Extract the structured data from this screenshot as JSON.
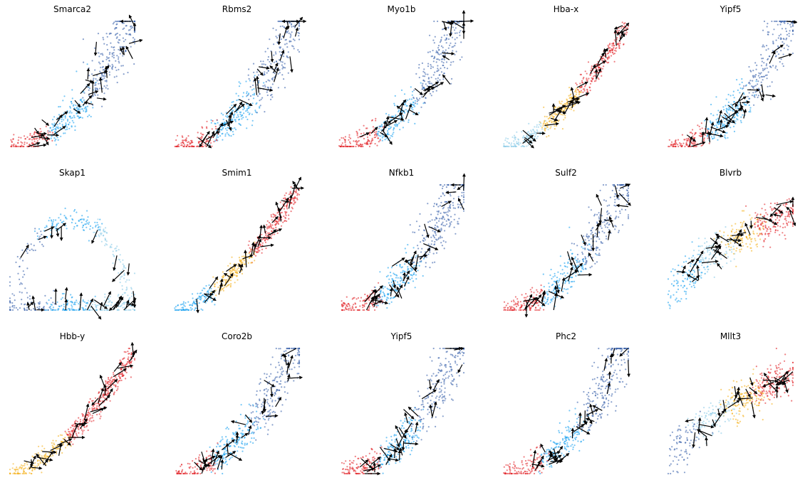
{
  "figure": {
    "panels": [
      {
        "title": "Smarca2"
      },
      {
        "title": "Rbms2"
      },
      {
        "title": "Myo1b"
      },
      {
        "title": "Hba-x"
      },
      {
        "title": "Yipf5"
      },
      {
        "title": "Skap1"
      },
      {
        "title": "Smim1"
      },
      {
        "title": "Nfkb1"
      },
      {
        "title": "Sulf2"
      },
      {
        "title": "Blvrb"
      },
      {
        "title": "Hbb-y"
      },
      {
        "title": "Coro2b"
      },
      {
        "title": "Yipf5"
      },
      {
        "title": "Phc2"
      },
      {
        "title": "Mllt3"
      }
    ]
  },
  "colors": {
    "dark_blue": "#3b63ab",
    "mid_blue": "#1aa1f0",
    "light_blue": "#8ccbe8",
    "orange": "#f5b21f",
    "red": "#e3262c",
    "arrow": "#000000"
  },
  "chart_data": {
    "type": "scatter",
    "subtype": "velocity-phase-portraits",
    "grid": "off",
    "axes": "off",
    "legend": "none",
    "layout_grid": [
      3,
      5
    ],
    "panels": [
      {
        "title": "Smarca2",
        "shape": "convex",
        "populations": [
          "red",
          "mid_blue",
          "dark_blue"
        ]
      },
      {
        "title": "Rbms2",
        "shape": "convex",
        "populations": [
          "red",
          "mid_blue",
          "dark_blue"
        ]
      },
      {
        "title": "Myo1b",
        "shape": "convex",
        "populations": [
          "red",
          "mid_blue",
          "dark_blue"
        ]
      },
      {
        "title": "Hba-x",
        "shape": "diagonal",
        "populations": [
          "light_blue",
          "orange",
          "red"
        ]
      },
      {
        "title": "Yipf5",
        "shape": "convex",
        "populations": [
          "red",
          "mid_blue",
          "dark_blue"
        ]
      },
      {
        "title": "Skap1",
        "shape": "loop",
        "populations": [
          "dark_blue",
          "mid_blue",
          "light_blue"
        ]
      },
      {
        "title": "Smim1",
        "shape": "diagonal",
        "populations": [
          "mid_blue",
          "orange",
          "red"
        ]
      },
      {
        "title": "Nfkb1",
        "shape": "convex",
        "populations": [
          "red",
          "mid_blue",
          "dark_blue"
        ]
      },
      {
        "title": "Sulf2",
        "shape": "convex",
        "populations": [
          "red",
          "mid_blue",
          "dark_blue"
        ]
      },
      {
        "title": "Blvrb",
        "shape": "concave",
        "populations": [
          "mid_blue",
          "light_blue",
          "orange",
          "red"
        ]
      },
      {
        "title": "Hbb-y",
        "shape": "diagonal",
        "populations": [
          "orange",
          "red"
        ]
      },
      {
        "title": "Coro2b",
        "shape": "convex",
        "populations": [
          "red",
          "mid_blue",
          "dark_blue"
        ]
      },
      {
        "title": "Yipf5",
        "shape": "convex",
        "populations": [
          "red",
          "mid_blue",
          "dark_blue"
        ]
      },
      {
        "title": "Phc2",
        "shape": "convex",
        "populations": [
          "red",
          "mid_blue",
          "dark_blue"
        ]
      },
      {
        "title": "Mllt3",
        "shape": "concave",
        "populations": [
          "dark_blue",
          "light_blue",
          "orange",
          "red"
        ]
      }
    ]
  }
}
